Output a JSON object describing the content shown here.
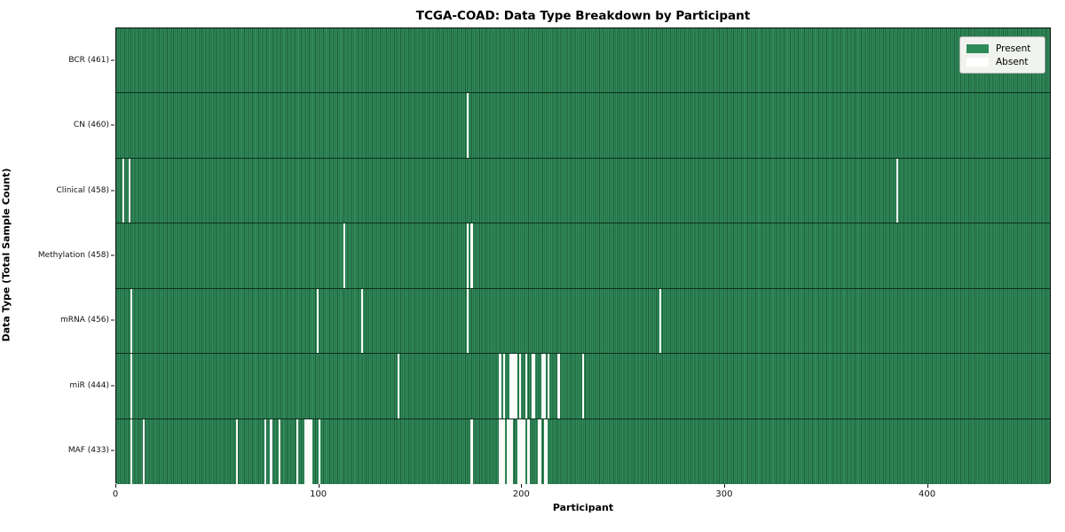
{
  "chart_data": {
    "type": "heatmap",
    "title": "TCGA-COAD: Data Type Breakdown by Participant",
    "xlabel": "Participant",
    "ylabel": "Data Type (Total Sample Count)",
    "n_participants": 461,
    "xlim": [
      0,
      461
    ],
    "x_ticks": [
      0,
      100,
      200,
      300,
      400
    ],
    "grid": false,
    "legend": {
      "position": "upper right",
      "present_label": "Present",
      "absent_label": "Absent"
    },
    "colors": {
      "present_fill": "#318b5b",
      "present_edge": "#1d5c39",
      "absent_fill": "#fbfbf8",
      "legend_bg": "#f0f3ee",
      "legend_border": "#b3b3b3",
      "legend_present_swatch": "#2e8b57",
      "legend_absent_swatch": "#ffffff"
    },
    "rows": [
      {
        "label": "BCR (461)",
        "data_type": "BCR",
        "present_count": 461,
        "absent_participants": []
      },
      {
        "label": "CN (460)",
        "data_type": "CN",
        "present_count": 460,
        "absent_participants": [
          173
        ]
      },
      {
        "label": "Clinical (458)",
        "data_type": "Clinical",
        "present_count": 458,
        "absent_participants": [
          3,
          6,
          385
        ]
      },
      {
        "label": "Methylation (458)",
        "data_type": "Methylation",
        "present_count": 458,
        "absent_participants": [
          112,
          173,
          175
        ]
      },
      {
        "label": "mRNA (456)",
        "data_type": "mRNA",
        "present_count": 456,
        "absent_participants": [
          7,
          99,
          121,
          173,
          268
        ]
      },
      {
        "label": "miR (444)",
        "data_type": "miR",
        "present_count": 444,
        "absent_participants": [
          7,
          139,
          189,
          191,
          194,
          195,
          196,
          197,
          199,
          202,
          205,
          206,
          210,
          211,
          213,
          218,
          230
        ]
      },
      {
        "label": "MAF (433)",
        "data_type": "MAF",
        "present_count": 433,
        "absent_participants": [
          7,
          13,
          59,
          73,
          76,
          80,
          89,
          93,
          94,
          95,
          96,
          100,
          175,
          189,
          190,
          191,
          193,
          194,
          195,
          198,
          199,
          200,
          201,
          203,
          208,
          209,
          211,
          212
        ]
      }
    ]
  }
}
